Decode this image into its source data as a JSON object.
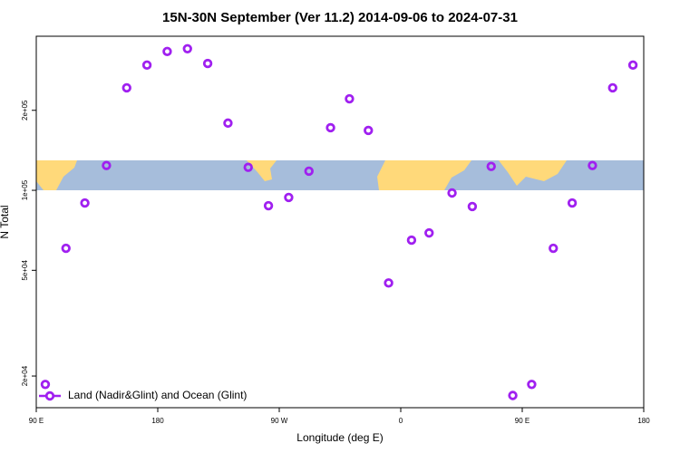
{
  "chart_data": {
    "type": "scatter",
    "title": "15N-30N September (Ver 11.2)   2014-09-06 to 2024-07-31",
    "x_label": "Longitude (deg E)",
    "y_label": "N Total",
    "yscale": "log",
    "legend": "lower left",
    "xlim": [
      90,
      540
    ],
    "ylim": [
      15200,
      380000
    ],
    "xticks": [
      {
        "value": 90,
        "label": "90 E"
      },
      {
        "value": 180,
        "label": "180"
      },
      {
        "value": 270,
        "label": "90 W"
      },
      {
        "value": 360,
        "label": "0"
      },
      {
        "value": 450,
        "label": "90 E"
      },
      {
        "value": 540,
        "label": "180"
      }
    ],
    "yticks": [
      {
        "value": 20000,
        "label": "2e+04"
      },
      {
        "value": 50000,
        "label": "5e+04"
      },
      {
        "value": 100000,
        "label": "1e+05"
      },
      {
        "value": 200000,
        "label": "2e+05"
      }
    ],
    "series": [
      {
        "name": "Land (Nadir&Glint) and Ocean (Glint)",
        "color": "#a020f0",
        "x": [
          96.7,
          112,
          126,
          142,
          157,
          172,
          187,
          202,
          217,
          232,
          247,
          262,
          277,
          292,
          308,
          322,
          336,
          351,
          368,
          381,
          398,
          413,
          427,
          443,
          457,
          473,
          487,
          502,
          517,
          532
        ],
        "values": [
          18600,
          60500,
          89600,
          124000,
          243000,
          296000,
          333000,
          341000,
          300000,
          179000,
          122000,
          87500,
          94000,
          118000,
          172000,
          221000,
          168000,
          44800,
          64900,
          69100,
          97700,
          86900,
          123000,
          16900,
          18600,
          60500,
          89600,
          124000,
          243000,
          296000
        ]
      }
    ]
  }
}
